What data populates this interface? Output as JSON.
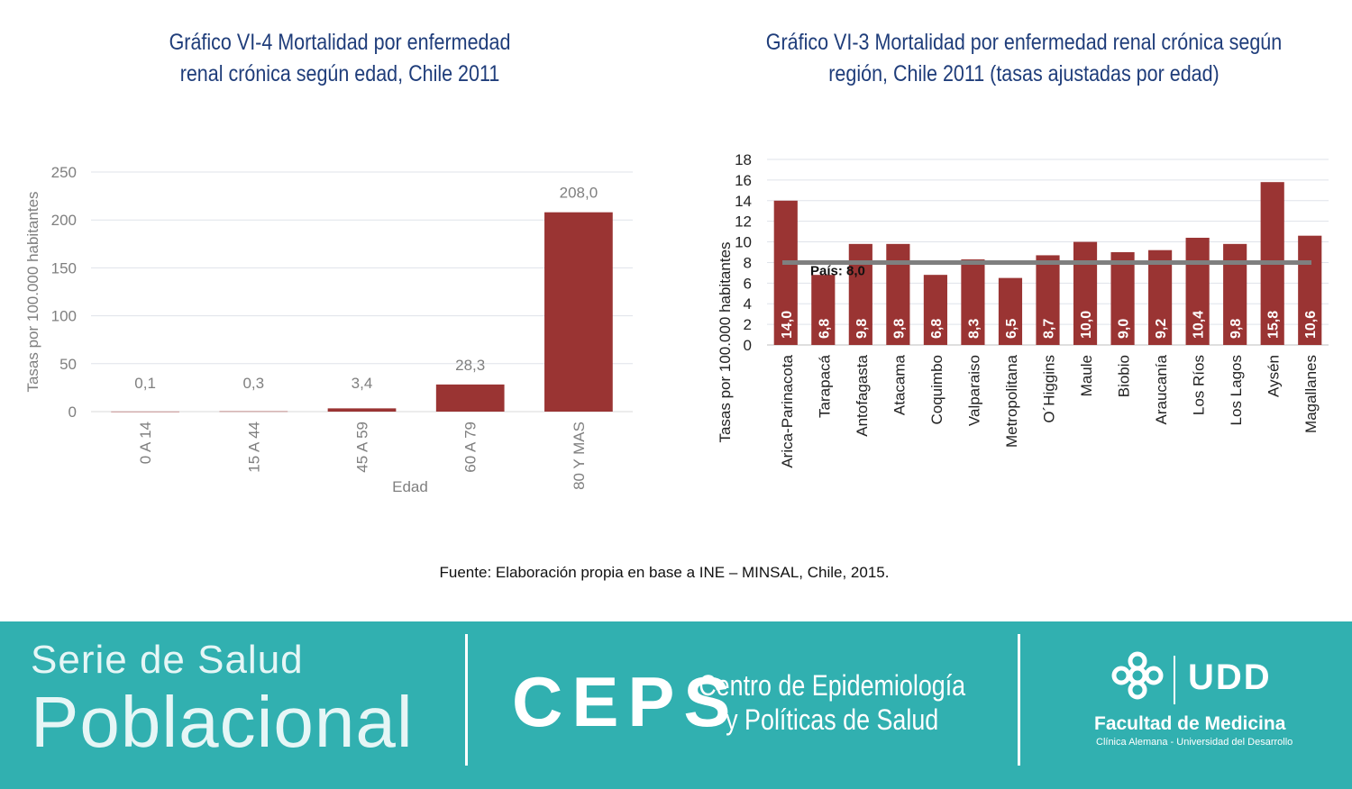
{
  "chart_data": [
    {
      "type": "bar",
      "title": "Gráfico VI-4 Mortalidad por enfermedad renal crónica según edad, Chile 2011",
      "title_lines": [
        "Gráfico VI-4 Mortalidad por enfermedad",
        "renal crónica según edad, Chile 2011"
      ],
      "xlabel": "Edad",
      "ylabel": "Tasas por 100.000 habitantes",
      "categories": [
        "0 A 14",
        "15 A 44",
        "45 A 59",
        "60 A 79",
        "80 Y MAS"
      ],
      "values": [
        0.1,
        0.3,
        3.4,
        28.3,
        208.0
      ],
      "data_labels": [
        "0,1",
        "0,3",
        "3,4",
        "28,3",
        "208,0"
      ],
      "yticks": [
        0,
        50,
        100,
        150,
        200,
        250
      ],
      "ylim": [
        0,
        250
      ],
      "grid": true,
      "bar_color": "#9a3433"
    },
    {
      "type": "bar",
      "title": "Gráfico VI-3 Mortalidad por enfermedad renal crónica según región, Chile 2011 (tasas ajustadas por edad)",
      "title_lines": [
        "Gráfico VI-3 Mortalidad por enfermedad renal crónica según",
        "región, Chile 2011 (tasas ajustadas por edad)"
      ],
      "ylabel": "Tasas por 100.000 habitantes",
      "categories": [
        "Arica-Parinacota",
        "Tarapacá",
        "Antofagasta",
        "Atacama",
        "Coquimbo",
        "Valparaiso",
        "Metropolitana",
        "O´Higgins",
        "Maule",
        "Biobio",
        "Araucanía",
        "Los Ríos",
        "Los Lagos",
        "Aysén",
        "Magallanes"
      ],
      "values": [
        14.0,
        6.8,
        9.8,
        9.8,
        6.8,
        8.3,
        6.5,
        8.7,
        10.0,
        9.0,
        9.2,
        10.4,
        9.8,
        15.8,
        10.6
      ],
      "data_labels": [
        "14,0",
        "6,8",
        "9,8",
        "9,8",
        "6,8",
        "8,3",
        "6,5",
        "8,7",
        "10,0",
        "9,0",
        "9,2",
        "10,4",
        "9,8",
        "15,8",
        "10,6"
      ],
      "yticks": [
        0,
        2,
        4,
        6,
        8,
        10,
        12,
        14,
        16,
        18
      ],
      "ylim": [
        0,
        18
      ],
      "grid": true,
      "reference_line": {
        "label": "País: 8,0",
        "value": 8.0,
        "color": "#7f7f7f"
      },
      "bar_color": "#9a3433"
    }
  ],
  "source": "Fuente: Elaboración propia en base a INE – MINSAL, Chile, 2015.",
  "footer": {
    "serie_line1": "Serie de Salud",
    "serie_line2": "Poblacional",
    "ceps": "CEPS",
    "ceps_line1": "Centro de Epidemiología",
    "ceps_line2": "y Políticas de Salud",
    "udd": "UDD",
    "facultad": "Facultad de Medicina",
    "clinica": "Clínica Alemana - Universidad del Desarrollo",
    "colors": {
      "band": "#31b0b0",
      "text": "#ffffff"
    }
  }
}
